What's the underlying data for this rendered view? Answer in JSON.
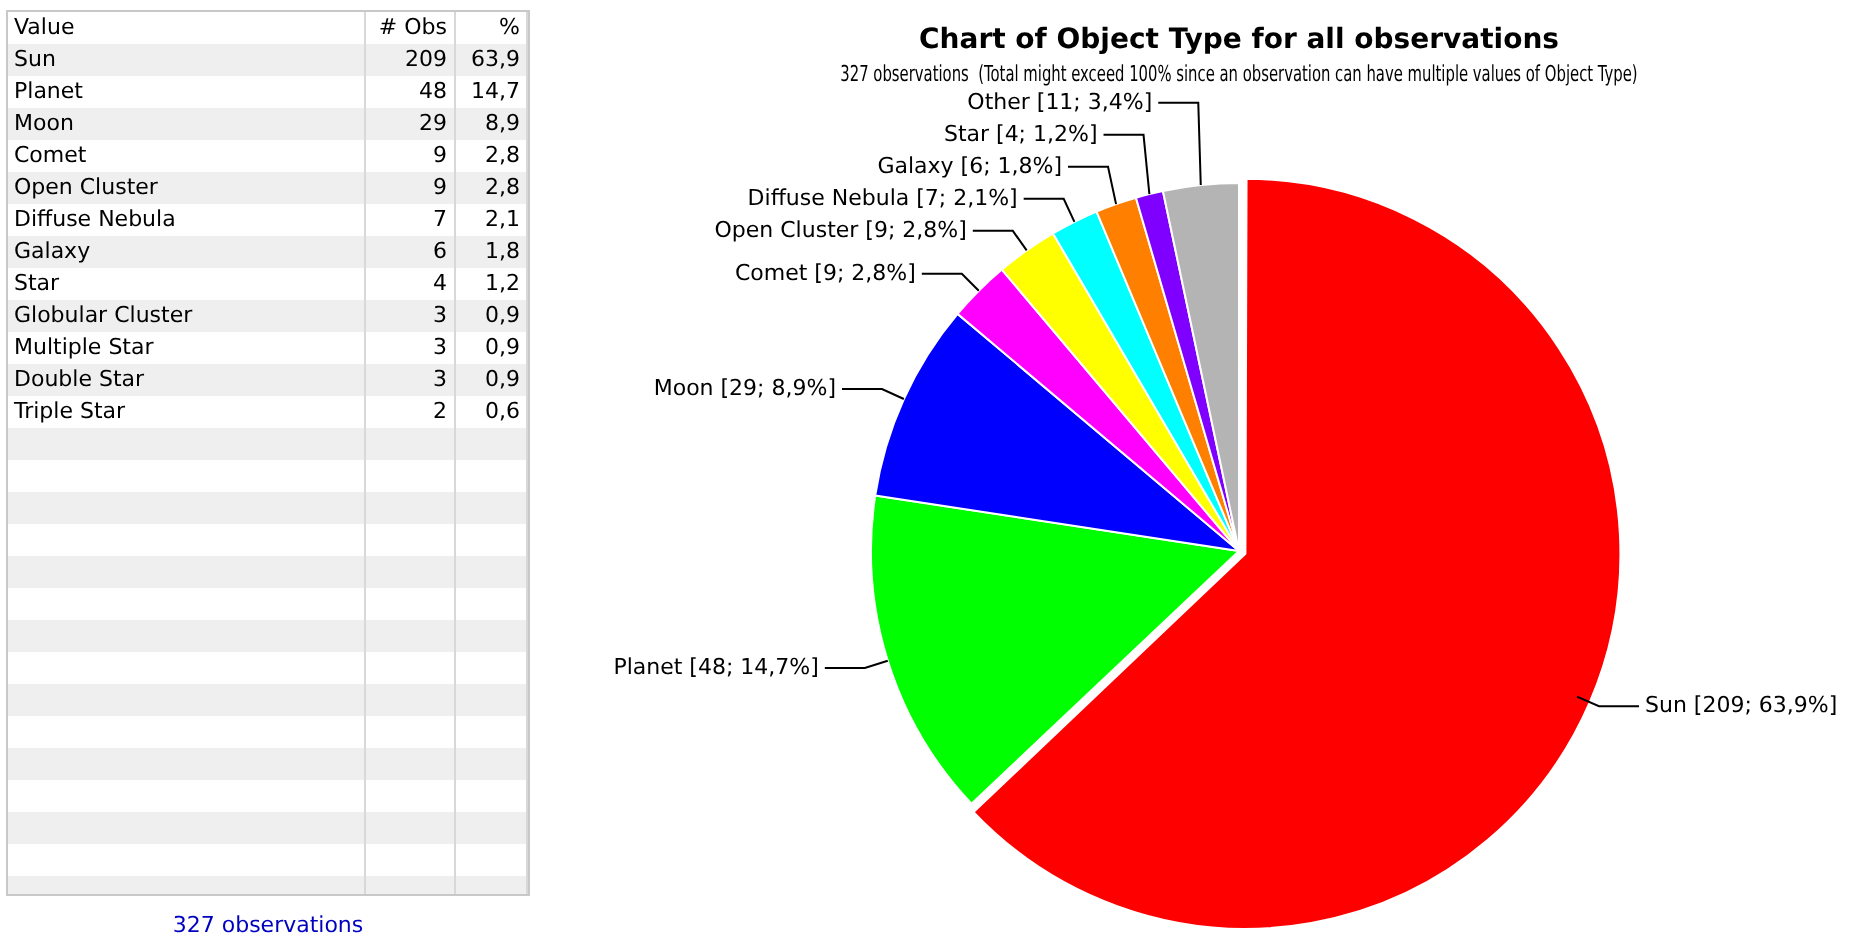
{
  "chart_data": [
    {
      "type": "other",
      "xlabel": "Value",
      "data_labels": true,
      "categories": [
        "Sun",
        "Planet",
        "Moon",
        "Comet",
        "Open Cluster",
        "Diffuse Nebula",
        "Galaxy",
        "Star",
        "Globular Cluster",
        "Multiple Star",
        "Double Star",
        "Triple Star"
      ],
      "series": [
        {
          "name": "# Obs",
          "values": [
            209,
            48,
            29,
            9,
            9,
            7,
            6,
            4,
            3,
            3,
            3,
            2
          ]
        },
        {
          "name": "%",
          "values": [
            63.9,
            14.7,
            8.9,
            2.8,
            2.8,
            2.1,
            1.8,
            1.2,
            0.9,
            0.9,
            0.9,
            0.6
          ],
          "value_labels": [
            "63,9",
            "14,7",
            "8,9",
            "2,8",
            "2,8",
            "2,1",
            "1,8",
            "1,2",
            "0,9",
            "0,9",
            "0,9",
            "0,6"
          ]
        }
      ],
      "annotations": [
        "327 observations"
      ]
    },
    {
      "type": "pie",
      "title": "Chart of Object Type for all observations",
      "subtitle": "327 observations  (Total might exceed 100% since an observation can have multiple values of Object Type)",
      "categories": [
        "Sun",
        "Planet",
        "Moon",
        "Comet",
        "Open Cluster",
        "Diffuse Nebula",
        "Galaxy",
        "Star",
        "Other"
      ],
      "values": [
        209,
        48,
        29,
        9,
        9,
        7,
        6,
        4,
        11
      ],
      "colors": [
        "#ff0000",
        "#00ff00",
        "#0000ff",
        "#ff00ff",
        "#ffff00",
        "#00ffff",
        "#ff8000",
        "#8000ff",
        "#b4b4b4"
      ],
      "value_labels": [
        "[209; 63,9%]",
        "[48; 14,7%]",
        "[29; 8,9%]",
        "[9; 2,8%]",
        "[9; 2,8%]",
        "[7; 2,1%]",
        "[6; 1,8%]",
        "[4; 1,2%]",
        "[11; 3,4%]"
      ]
    }
  ]
}
